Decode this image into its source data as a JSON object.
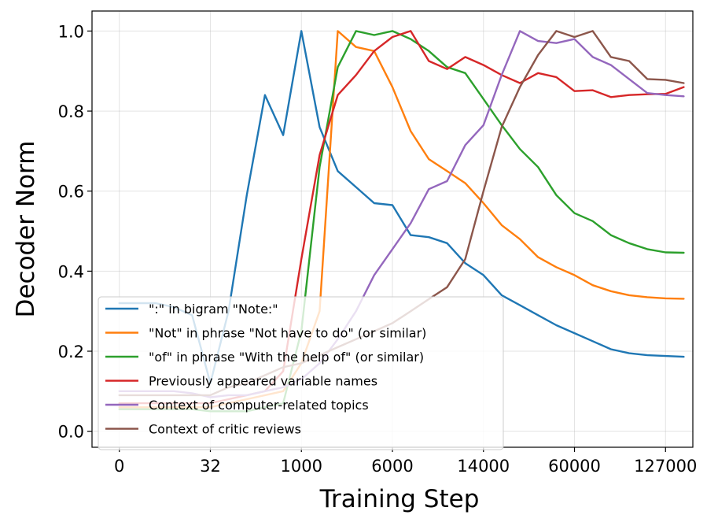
{
  "chart_data": {
    "type": "line",
    "xlabel": "Training Step",
    "ylabel": "Decoder Norm",
    "xtick_labels": [
      "0",
      "32",
      "1000",
      "6000",
      "14000",
      "60000",
      "127000"
    ],
    "xtick_index": [
      0,
      5,
      10,
      15,
      20,
      25,
      30
    ],
    "x_index_range": [
      -1.5,
      31.5
    ],
    "ylim": [
      -0.04,
      1.05
    ],
    "yticks": [
      0.0,
      0.2,
      0.4,
      0.6,
      0.8,
      1.0
    ],
    "ytick_labels": [
      "0.0",
      "0.2",
      "0.4",
      "0.6",
      "0.8",
      "1.0"
    ],
    "grid": true,
    "legend_position": "lower-left",
    "series": [
      {
        "name": "\":\" in bigram \"Note:\"",
        "color": "#1f77b4",
        "values": [
          0.32,
          0.32,
          0.32,
          0.31,
          0.29,
          0.12,
          0.3,
          0.59,
          0.84,
          0.74,
          1.0,
          0.76,
          0.65,
          0.61,
          0.57,
          0.565,
          0.49,
          0.485,
          0.47,
          0.42,
          0.39,
          0.34,
          0.315,
          0.29,
          0.265,
          0.245,
          0.225,
          0.205,
          0.195,
          0.19,
          0.188,
          0.186
        ]
      },
      {
        "name": "\"Not\" in phrase \"Not have to do\" (or similar)",
        "color": "#ff7f0e",
        "values": [
          0.06,
          0.06,
          0.06,
          0.06,
          0.06,
          0.06,
          0.07,
          0.08,
          0.09,
          0.1,
          0.17,
          0.3,
          1.0,
          0.96,
          0.95,
          0.86,
          0.75,
          0.68,
          0.65,
          0.62,
          0.57,
          0.515,
          0.48,
          0.435,
          0.41,
          0.39,
          0.365,
          0.35,
          0.34,
          0.335,
          0.332,
          0.331
        ]
      },
      {
        "name": "\"of\" in phrase \"With the help of\" (or similar)",
        "color": "#2ca02c",
        "values": [
          0.055,
          0.055,
          0.055,
          0.055,
          0.055,
          0.05,
          0.05,
          0.05,
          0.06,
          0.07,
          0.25,
          0.66,
          0.91,
          1.0,
          0.99,
          1.0,
          0.98,
          0.95,
          0.91,
          0.895,
          0.83,
          0.765,
          0.705,
          0.66,
          0.59,
          0.545,
          0.525,
          0.49,
          0.47,
          0.455,
          0.447,
          0.446
        ]
      },
      {
        "name": "Previously appeared variable names",
        "color": "#d62728",
        "values": [
          0.07,
          0.07,
          0.07,
          0.07,
          0.07,
          0.07,
          0.08,
          0.09,
          0.1,
          0.15,
          0.43,
          0.69,
          0.84,
          0.89,
          0.95,
          0.985,
          1.0,
          0.925,
          0.905,
          0.935,
          0.915,
          0.89,
          0.87,
          0.895,
          0.885,
          0.85,
          0.852,
          0.835,
          0.84,
          0.842,
          0.843,
          0.86
        ]
      },
      {
        "name": "Context of computer-related topics",
        "color": "#9467bd",
        "values": [
          0.1,
          0.1,
          0.1,
          0.1,
          0.095,
          0.085,
          0.09,
          0.09,
          0.1,
          0.11,
          0.13,
          0.17,
          0.23,
          0.3,
          0.39,
          0.455,
          0.52,
          0.605,
          0.625,
          0.715,
          0.765,
          0.89,
          1.0,
          0.975,
          0.97,
          0.98,
          0.935,
          0.915,
          0.88,
          0.845,
          0.84,
          0.837
        ]
      },
      {
        "name": "Context of critic reviews",
        "color": "#8c564b",
        "values": [
          0.09,
          0.09,
          0.09,
          0.09,
          0.09,
          0.09,
          0.11,
          0.12,
          0.14,
          0.16,
          0.17,
          0.19,
          0.21,
          0.23,
          0.25,
          0.27,
          0.3,
          0.33,
          0.36,
          0.43,
          0.6,
          0.76,
          0.86,
          0.94,
          1.0,
          0.985,
          1.0,
          0.935,
          0.925,
          0.88,
          0.878,
          0.87
        ]
      }
    ]
  }
}
